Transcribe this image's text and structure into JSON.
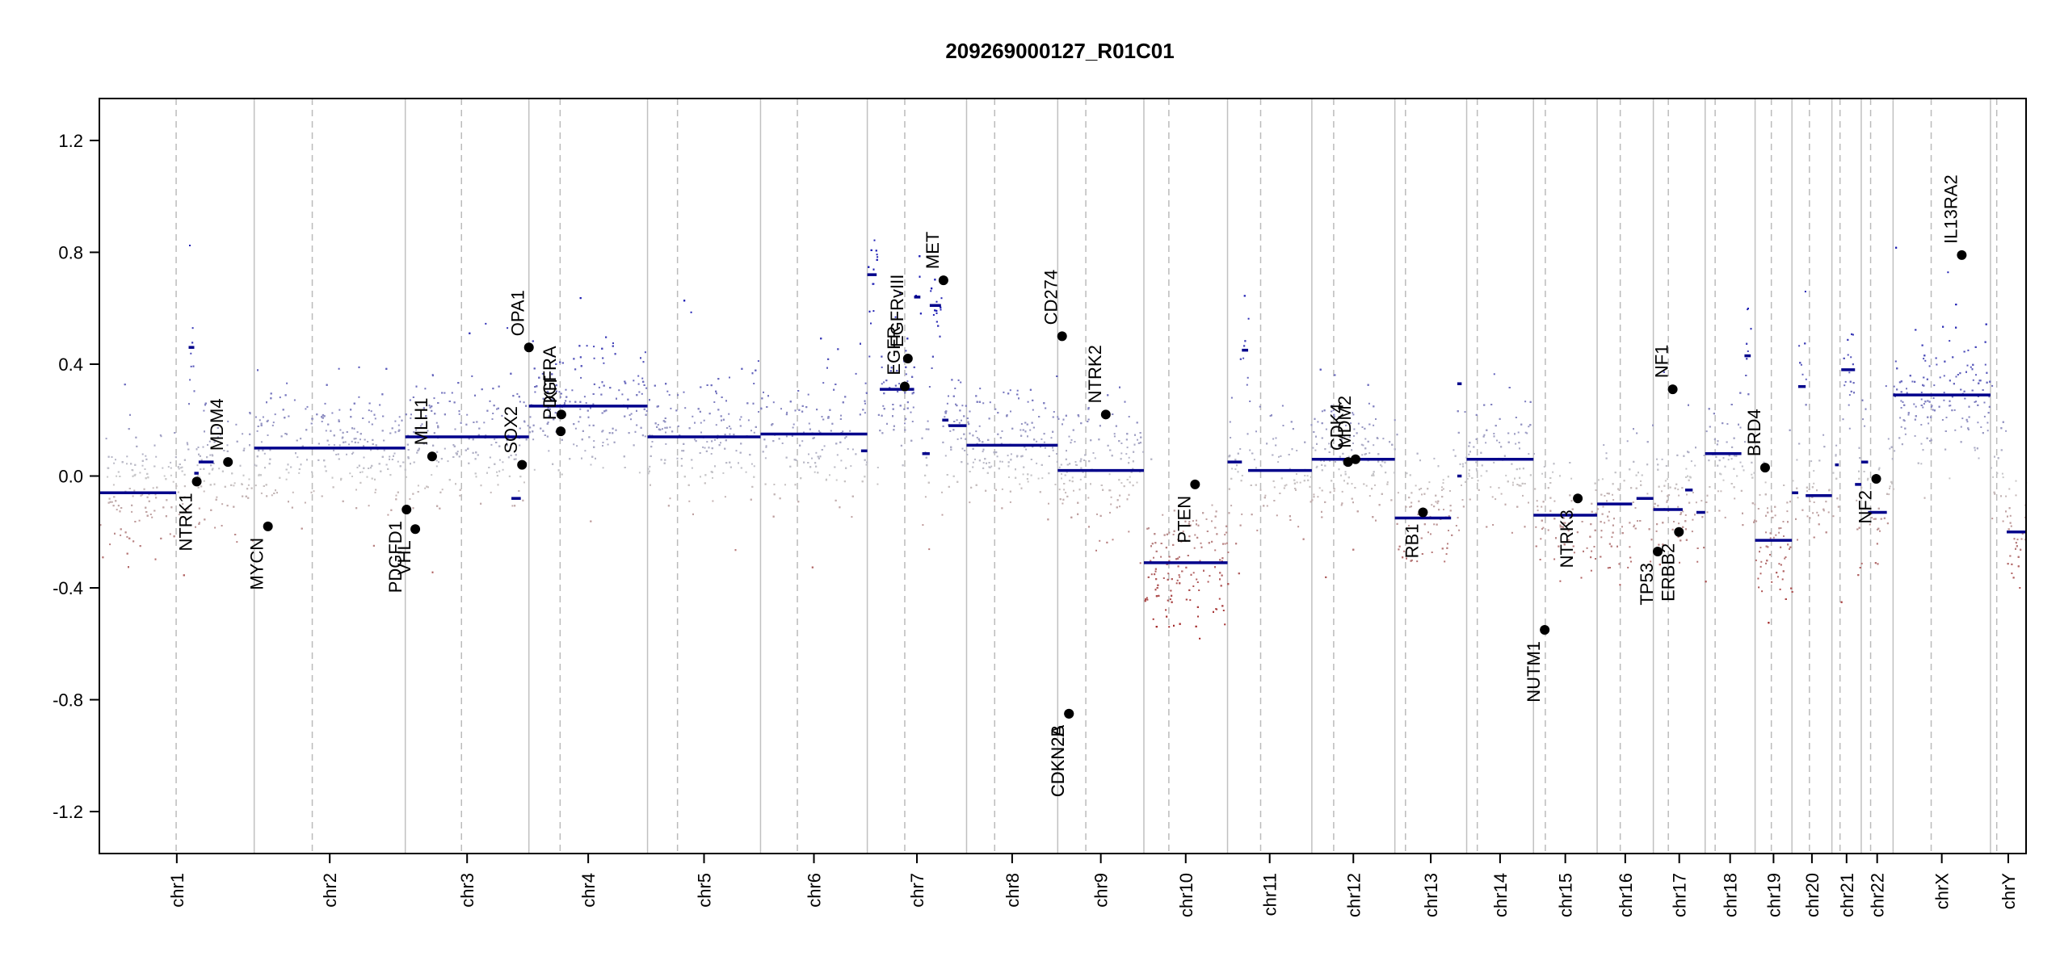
{
  "chart_data": {
    "type": "scatter",
    "title": "209269000127_R01C01",
    "xlabel": "",
    "ylabel": "",
    "ylim": [
      -1.35,
      1.35
    ],
    "y_ticks": [
      -1.2,
      -0.8,
      -0.4,
      0.0,
      0.4,
      0.8,
      1.2
    ],
    "y_tick_labels": [
      "-1.2",
      "-0.8",
      "-0.4",
      "0.0",
      "0.4",
      "0.8",
      "1.2"
    ],
    "grid": false,
    "colors": {
      "gain": "#1f1fb4",
      "loss": "#a01818",
      "neutral": "#c8c8c8",
      "segment": "#00008b",
      "chrom_boundary": "#c0c0c0",
      "centromere": "#bbbbbb"
    },
    "chromosomes": [
      {
        "name": "chr1",
        "start": 0,
        "end": 248,
        "cen": 123
      },
      {
        "name": "chr2",
        "start": 248,
        "end": 490,
        "cen": 341
      },
      {
        "name": "chr3",
        "start": 490,
        "end": 688,
        "cen": 580
      },
      {
        "name": "chr4",
        "start": 688,
        "end": 878,
        "cen": 738
      },
      {
        "name": "chr5",
        "start": 878,
        "end": 1059,
        "cen": 926
      },
      {
        "name": "chr6",
        "start": 1059,
        "end": 1230,
        "cen": 1118
      },
      {
        "name": "chr7",
        "start": 1230,
        "end": 1389,
        "cen": 1290
      },
      {
        "name": "chr8",
        "start": 1389,
        "end": 1535,
        "cen": 1434
      },
      {
        "name": "chr9",
        "start": 1535,
        "end": 1673,
        "cen": 1580
      },
      {
        "name": "chr10",
        "start": 1673,
        "end": 1807,
        "cen": 1713
      },
      {
        "name": "chr11",
        "start": 1807,
        "end": 1942,
        "cen": 1860
      },
      {
        "name": "chr12",
        "start": 1942,
        "end": 2075,
        "cen": 1977
      },
      {
        "name": "chr13",
        "start": 2075,
        "end": 2190,
        "cen": 2092
      },
      {
        "name": "chr14",
        "start": 2190,
        "end": 2297,
        "cen": 2207
      },
      {
        "name": "chr15",
        "start": 2297,
        "end": 2399,
        "cen": 2316
      },
      {
        "name": "chr16",
        "start": 2399,
        "end": 2489,
        "cen": 2436
      },
      {
        "name": "chr17",
        "start": 2489,
        "end": 2572,
        "cen": 2513
      },
      {
        "name": "chr18",
        "start": 2572,
        "end": 2652,
        "cen": 2588
      },
      {
        "name": "chr19",
        "start": 2652,
        "end": 2711,
        "cen": 2678
      },
      {
        "name": "chr20",
        "start": 2711,
        "end": 2775,
        "cen": 2739
      },
      {
        "name": "chr21",
        "start": 2775,
        "end": 2822,
        "cen": 2788
      },
      {
        "name": "chr22",
        "start": 2822,
        "end": 2873,
        "cen": 2837
      },
      {
        "name": "chrX",
        "start": 2873,
        "end": 3029,
        "cen": 2934
      },
      {
        "name": "chrY",
        "start": 3029,
        "end": 3086,
        "cen": 3039
      }
    ],
    "segments": [
      {
        "chr": "chr1",
        "x0": 0,
        "x1": 123,
        "y": -0.06
      },
      {
        "chr": "chr1",
        "x0": 143,
        "x1": 152,
        "y": 0.46
      },
      {
        "chr": "chr1",
        "x0": 152,
        "x1": 159,
        "y": 0.01
      },
      {
        "chr": "chr1",
        "x0": 159,
        "x1": 183,
        "y": 0.05
      },
      {
        "chr": "chr2",
        "x0": 248,
        "x1": 490,
        "y": 0.1
      },
      {
        "chr": "chr3",
        "x0": 490,
        "x1": 688,
        "y": 0.14
      },
      {
        "chr": "chr3",
        "x0": 660,
        "x1": 675,
        "y": -0.08
      },
      {
        "chr": "chr4",
        "x0": 688,
        "x1": 878,
        "y": 0.25
      },
      {
        "chr": "chr5",
        "x0": 878,
        "x1": 1059,
        "y": 0.14
      },
      {
        "chr": "chr6",
        "x0": 1059,
        "x1": 1230,
        "y": 0.15
      },
      {
        "chr": "chr6",
        "x0": 1220,
        "x1": 1230,
        "y": 0.09
      },
      {
        "chr": "chr7",
        "x0": 1230,
        "x1": 1245,
        "y": 0.72
      },
      {
        "chr": "chr7",
        "x0": 1250,
        "x1": 1305,
        "y": 0.31
      },
      {
        "chr": "chr7",
        "x0": 1305,
        "x1": 1315,
        "y": 0.64
      },
      {
        "chr": "chr7",
        "x0": 1318,
        "x1": 1330,
        "y": 0.08
      },
      {
        "chr": "chr7",
        "x0": 1330,
        "x1": 1348,
        "y": 0.61
      },
      {
        "chr": "chr7",
        "x0": 1350,
        "x1": 1360,
        "y": 0.2
      },
      {
        "chr": "chr7",
        "x0": 1360,
        "x1": 1389,
        "y": 0.18
      },
      {
        "chr": "chr8",
        "x0": 1389,
        "x1": 1535,
        "y": 0.11
      },
      {
        "chr": "chr9",
        "x0": 1535,
        "x1": 1673,
        "y": 0.02
      },
      {
        "chr": "chr10",
        "x0": 1673,
        "x1": 1807,
        "y": -0.31
      },
      {
        "chr": "chr11",
        "x0": 1807,
        "x1": 1830,
        "y": 0.05
      },
      {
        "chr": "chr11",
        "x0": 1830,
        "x1": 1840,
        "y": 0.45
      },
      {
        "chr": "chr11",
        "x0": 1840,
        "x1": 1942,
        "y": 0.02
      },
      {
        "chr": "chr12",
        "x0": 1942,
        "x1": 2075,
        "y": 0.06
      },
      {
        "chr": "chr13",
        "x0": 2075,
        "x1": 2165,
        "y": -0.15
      },
      {
        "chr": "chr13",
        "x0": 2175,
        "x1": 2182,
        "y": -0.0
      },
      {
        "chr": "chr13",
        "x0": 2175,
        "x1": 2182,
        "y": 0.33
      },
      {
        "chr": "chr14",
        "x0": 2190,
        "x1": 2297,
        "y": 0.06
      },
      {
        "chr": "chr15",
        "x0": 2297,
        "x1": 2399,
        "y": -0.14
      },
      {
        "chr": "chr16",
        "x0": 2399,
        "x1": 2455,
        "y": -0.1
      },
      {
        "chr": "chr16",
        "x0": 2462,
        "x1": 2489,
        "y": -0.08
      },
      {
        "chr": "chr17",
        "x0": 2489,
        "x1": 2536,
        "y": -0.12
      },
      {
        "chr": "chr17",
        "x0": 2540,
        "x1": 2552,
        "y": -0.05
      },
      {
        "chr": "chr17",
        "x0": 2558,
        "x1": 2572,
        "y": -0.13
      },
      {
        "chr": "chr18",
        "x0": 2572,
        "x1": 2630,
        "y": 0.08
      },
      {
        "chr": "chr18",
        "x0": 2635,
        "x1": 2645,
        "y": 0.43
      },
      {
        "chr": "chr19",
        "x0": 2652,
        "x1": 2711,
        "y": -0.23
      },
      {
        "chr": "chr20",
        "x0": 2711,
        "x1": 2721,
        "y": -0.06
      },
      {
        "chr": "chr20",
        "x0": 2721,
        "x1": 2733,
        "y": 0.32
      },
      {
        "chr": "chr20",
        "x0": 2733,
        "x1": 2775,
        "y": -0.07
      },
      {
        "chr": "chr21",
        "x0": 2780,
        "x1": 2786,
        "y": 0.04
      },
      {
        "chr": "chr21",
        "x0": 2790,
        "x1": 2812,
        "y": 0.38
      },
      {
        "chr": "chr21",
        "x0": 2812,
        "x1": 2822,
        "y": -0.03
      },
      {
        "chr": "chr22",
        "x0": 2822,
        "x1": 2833,
        "y": 0.05
      },
      {
        "chr": "chr22",
        "x0": 2833,
        "x1": 2863,
        "y": -0.13
      },
      {
        "chr": "chrX",
        "x0": 2873,
        "x1": 3029,
        "y": 0.29
      },
      {
        "chr": "chrY",
        "x0": 3055,
        "x1": 3086,
        "y": -0.2
      }
    ],
    "genes": [
      {
        "name": "NTRK1",
        "x": 156,
        "y": -0.02,
        "label_side": "below"
      },
      {
        "name": "MDM4",
        "x": 206,
        "y": 0.05,
        "label_side": "above"
      },
      {
        "name": "MYCN",
        "x": 270,
        "y": -0.18,
        "label_side": "below"
      },
      {
        "name": "PDGFD1",
        "x": 492,
        "y": -0.12,
        "label_side": "below"
      },
      {
        "name": "VHL",
        "x": 506,
        "y": -0.19,
        "label_side": "below"
      },
      {
        "name": "MLH1",
        "x": 533,
        "y": 0.07,
        "label_side": "above"
      },
      {
        "name": "SOX2",
        "x": 677,
        "y": 0.04,
        "label_side": "above"
      },
      {
        "name": "OPA1",
        "x": 688,
        "y": 0.46,
        "label_side": "above"
      },
      {
        "name": "KIT",
        "x": 740,
        "y": 0.22,
        "label_side": "above"
      },
      {
        "name": "PDGFRA",
        "x": 739,
        "y": 0.16,
        "label_side": "above"
      },
      {
        "name": "EGFR",
        "x": 1290,
        "y": 0.32,
        "label_side": "above"
      },
      {
        "name": "EGFRvIII",
        "x": 1295,
        "y": 0.42,
        "label_side": "above"
      },
      {
        "name": "MET",
        "x": 1352,
        "y": 0.7,
        "label_side": "above"
      },
      {
        "name": "CD274",
        "x": 1542,
        "y": 0.5,
        "label_side": "above"
      },
      {
        "name": "CDKN2A",
        "x": 1553,
        "y": -0.85,
        "label_side": "below"
      },
      {
        "name": "CDKN2B",
        "x": 1553,
        "y": -0.85,
        "label_side": "below"
      },
      {
        "name": "NTRK2",
        "x": 1612,
        "y": 0.22,
        "label_side": "above"
      },
      {
        "name": "PTEN",
        "x": 1755,
        "y": -0.03,
        "label_side": "below"
      },
      {
        "name": "CDK4",
        "x": 2000,
        "y": 0.05,
        "label_side": "above"
      },
      {
        "name": "MDM2",
        "x": 2012,
        "y": 0.06,
        "label_side": "above"
      },
      {
        "name": "RB1",
        "x": 2120,
        "y": -0.13,
        "label_side": "below"
      },
      {
        "name": "NUTM1",
        "x": 2315,
        "y": -0.55,
        "label_side": "below"
      },
      {
        "name": "NTRK3",
        "x": 2368,
        "y": -0.08,
        "label_side": "below"
      },
      {
        "name": "TP53",
        "x": 2496,
        "y": -0.27,
        "label_side": "below"
      },
      {
        "name": "NF1",
        "x": 2520,
        "y": 0.31,
        "label_side": "above"
      },
      {
        "name": "ERBB2",
        "x": 2530,
        "y": -0.2,
        "label_side": "below"
      },
      {
        "name": "BRD4",
        "x": 2668,
        "y": 0.03,
        "label_side": "above"
      },
      {
        "name": "NF2",
        "x": 2846,
        "y": -0.01,
        "label_side": "below"
      },
      {
        "name": "IL13RA2",
        "x": 2983,
        "y": 0.79,
        "label_side": "above"
      }
    ]
  }
}
